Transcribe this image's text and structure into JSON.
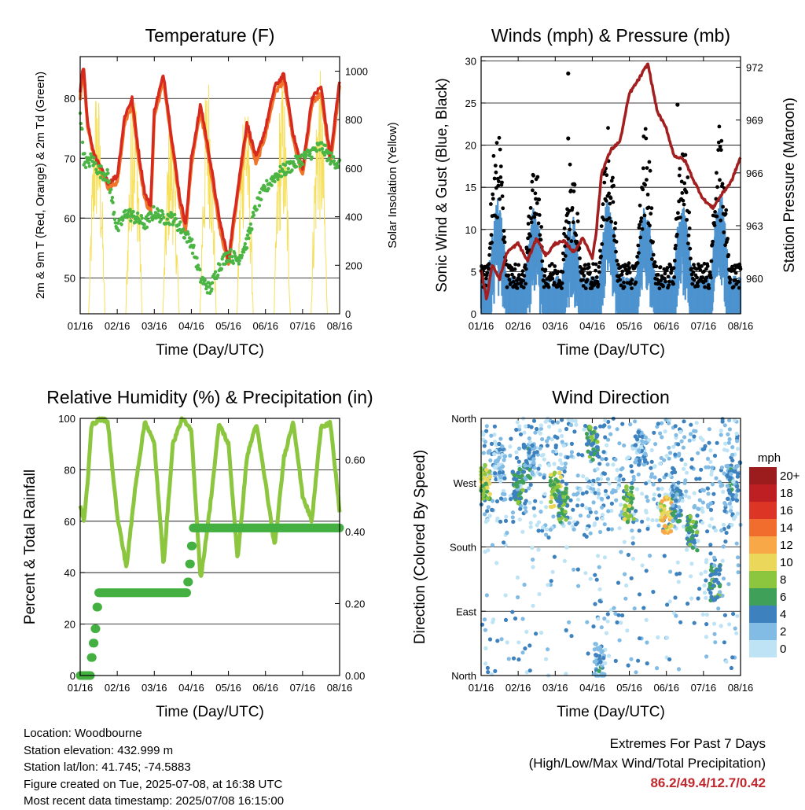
{
  "colors": {
    "temp_2m": "#d62a1e",
    "temp_9m": "#f0742a",
    "dewpoint": "#4bb543",
    "solar": "#f6df5b",
    "wind": "#4c93cf",
    "gust": "#000000",
    "pressure": "#a31f1f",
    "rh": "#8cc63f",
    "precip": "#44b042",
    "extremes_text": "#c0282d"
  },
  "chart_data": [
    {
      "type": "line",
      "title": "Temperature (F)",
      "xlabel": "Time (Day/UTC)",
      "ylabel": "2m & 9m T (Red, Orange) & 2m Td (Green)",
      "y2label": "Solar Insolation (Yellow)",
      "xticks": [
        "01/16",
        "02/16",
        "03/16",
        "04/16",
        "05/16",
        "06/16",
        "07/16",
        "08/16"
      ],
      "ylim": [
        44,
        87
      ],
      "yticks": [
        50,
        60,
        70,
        80
      ],
      "y2lim": [
        0,
        1060
      ],
      "y2ticks": [
        0,
        200,
        400,
        600,
        800,
        1000
      ],
      "grid": true,
      "series": [
        {
          "key": "temp_2m",
          "x": [
            0,
            0.05,
            0.1,
            0.2,
            0.35,
            0.5,
            0.75,
            1.0,
            1.2,
            1.4,
            1.6,
            1.75,
            1.9,
            2.0,
            2.25,
            2.5,
            2.7,
            2.85,
            3.0,
            3.25,
            3.5,
            3.75,
            4.0,
            4.25,
            4.5,
            4.75,
            5.0,
            5.25,
            5.5,
            5.75,
            6.0,
            6.25,
            6.5,
            6.75,
            7.0
          ],
          "values": [
            81,
            84,
            85,
            76,
            71,
            69,
            66,
            67,
            77,
            80,
            70,
            64,
            62,
            78,
            84,
            72,
            63,
            59,
            70,
            79,
            70,
            60,
            53,
            65,
            76,
            70,
            75,
            82,
            84,
            74,
            68,
            80,
            82,
            70,
            83
          ]
        },
        {
          "key": "temp_9m",
          "x": [
            0,
            0.05,
            0.1,
            0.2,
            0.35,
            0.5,
            0.75,
            1.0,
            1.2,
            1.4,
            1.6,
            1.75,
            1.9,
            2.0,
            2.25,
            2.5,
            2.7,
            2.85,
            3.0,
            3.25,
            3.5,
            3.75,
            4.0,
            4.25,
            4.5,
            4.75,
            5.0,
            5.25,
            5.5,
            5.75,
            6.0,
            6.25,
            6.5,
            6.75,
            7.0
          ],
          "values": [
            80,
            83,
            84,
            75,
            71,
            69,
            65,
            66,
            76,
            79,
            69,
            63,
            61,
            77,
            83,
            71,
            62,
            58,
            69,
            78,
            69,
            59,
            52,
            64,
            75,
            69,
            74,
            81,
            83,
            73,
            67,
            79,
            81,
            69,
            82
          ]
        },
        {
          "key": "dewpoint",
          "x": [
            0,
            0.1,
            0.2,
            0.3,
            0.5,
            0.75,
            1.0,
            1.25,
            1.5,
            1.75,
            2.0,
            2.25,
            2.5,
            2.75,
            3.0,
            3.25,
            3.5,
            3.75,
            4.0,
            4.25,
            4.5,
            4.75,
            5.0,
            5.25,
            5.5,
            5.75,
            6.0,
            6.25,
            6.5,
            6.75,
            7.0
          ],
          "values": [
            78,
            70,
            69,
            70,
            68,
            67,
            58,
            61,
            60,
            59,
            61,
            60,
            60,
            58,
            56,
            50,
            48,
            52,
            54,
            53,
            56,
            62,
            65,
            67,
            68,
            69,
            70,
            71,
            72,
            70,
            69
          ]
        },
        {
          "key": "solar",
          "axis": "y2",
          "peaks": [
            0.45,
            1.45,
            2.45,
            3.45,
            4.45,
            5.45,
            6.45
          ],
          "values": [
            980,
            1020,
            850,
            1030,
            1010,
            1000,
            1030
          ]
        }
      ]
    },
    {
      "type": "scatter",
      "title": "Winds (mph) & Pressure (mb)",
      "xlabel": "Time (Day/UTC)",
      "ylabel": "Sonic Wind & Gust (Blue, Black)",
      "y2label": "Station Pressure (Maroon)",
      "xticks": [
        "01/16",
        "02/16",
        "03/16",
        "04/16",
        "05/16",
        "06/16",
        "07/16",
        "08/16"
      ],
      "ylim": [
        0,
        30.5
      ],
      "yticks": [
        0,
        5,
        10,
        15,
        20,
        25,
        30
      ],
      "y2lim": [
        958.0,
        972.6
      ],
      "y2ticks": [
        960,
        963,
        966,
        969,
        972
      ],
      "grid": true,
      "series": [
        {
          "key": "pressure",
          "axis": "y2",
          "type": "line",
          "x": [
            0,
            0.15,
            0.3,
            0.5,
            0.7,
            1.0,
            1.25,
            1.5,
            1.75,
            2.0,
            2.25,
            2.5,
            2.75,
            3.0,
            3.1,
            3.25,
            3.5,
            3.75,
            4.0,
            4.25,
            4.5,
            4.75,
            5.0,
            5.2,
            5.5,
            5.75,
            6.0,
            6.25,
            6.5,
            6.75,
            7.0
          ],
          "values": [
            960.5,
            958.8,
            960.8,
            960.0,
            961.5,
            962.0,
            961.0,
            962.3,
            961.3,
            962.0,
            962.1,
            961.5,
            962.3,
            961.2,
            962.5,
            966.0,
            967.3,
            967.8,
            970.5,
            971.3,
            972.2,
            969.5,
            968.5,
            967.0,
            966.7,
            965.5,
            964.5,
            964.0,
            964.8,
            965.5,
            966.9
          ]
        },
        {
          "key": "wind",
          "type": "scatter-band",
          "daily_peak": [
            9,
            8,
            7,
            9,
            8,
            9,
            10,
            8
          ]
        },
        {
          "key": "gust",
          "type": "scatter-band",
          "daily_peak": [
            18,
            14,
            13,
            18,
            17,
            16,
            17,
            17
          ],
          "outliers": [
            {
              "x": 2.35,
              "y": 28.5
            },
            {
              "x": 2.35,
              "y": 20.8
            },
            {
              "x": 5.3,
              "y": 24.8
            }
          ]
        }
      ]
    },
    {
      "type": "line",
      "title": "Relative Humidity (%) & Precipitation (in)",
      "xlabel": "Time (Day/UTC)",
      "ylabel": "Percent & Total Rainfall",
      "xticks": [
        "01/16",
        "02/16",
        "03/16",
        "04/16",
        "05/16",
        "06/16",
        "07/16",
        "08/16"
      ],
      "ylim": [
        0,
        100
      ],
      "yticks": [
        0,
        20,
        40,
        60,
        80,
        100
      ],
      "y2lim": [
        0,
        0.7143
      ],
      "y2ticks": [
        "0.00",
        "0.20",
        "0.40",
        "0.60"
      ],
      "grid": true,
      "series": [
        {
          "key": "rh",
          "x": [
            0,
            0.1,
            0.2,
            0.3,
            0.45,
            0.6,
            0.75,
            1.0,
            1.25,
            1.5,
            1.75,
            2.0,
            2.25,
            2.5,
            2.75,
            3.0,
            3.25,
            3.5,
            3.75,
            4.0,
            4.25,
            4.5,
            4.75,
            5.0,
            5.25,
            5.5,
            5.75,
            6.0,
            6.25,
            6.5,
            6.75,
            7.0
          ],
          "values": [
            66,
            60,
            75,
            97,
            99,
            100,
            98,
            62,
            42,
            75,
            99,
            90,
            43,
            90,
            100,
            95,
            37,
            65,
            98,
            90,
            45,
            85,
            98,
            75,
            50,
            85,
            99,
            70,
            60,
            97,
            98,
            64
          ]
        },
        {
          "key": "precip",
          "axis": "y2",
          "type": "step",
          "x": [
            0,
            0.2,
            0.3,
            0.35,
            0.4,
            0.45,
            0.5,
            2.8,
            2.9,
            2.95,
            3.0,
            3.05,
            7.0
          ],
          "values": [
            0.0,
            0.0,
            0.05,
            0.09,
            0.13,
            0.19,
            0.23,
            0.23,
            0.26,
            0.31,
            0.36,
            0.41,
            0.41
          ]
        }
      ]
    },
    {
      "type": "scatter",
      "title": "Wind Direction",
      "xlabel": "Time (Day/UTC)",
      "ylabel": "Direction (Colored By Speed)",
      "xticks": [
        "01/16",
        "02/16",
        "03/16",
        "04/16",
        "05/16",
        "06/16",
        "07/16",
        "08/16"
      ],
      "yticks": [
        "North",
        "East",
        "South",
        "West",
        "North"
      ],
      "ylim": [
        0,
        360
      ],
      "legend_title": "mph",
      "legend": [
        "20+",
        "18",
        "16",
        "14",
        "12",
        "10",
        "8",
        "6",
        "4",
        "2",
        "0"
      ],
      "legend_colors": [
        "#9c1c1d",
        "#be1f23",
        "#dd3525",
        "#f06d2d",
        "#f8a847",
        "#ebd85a",
        "#8cc63f",
        "#3fa05a",
        "#3d82bf",
        "#82bce5",
        "#bde3f5"
      ],
      "legend_placement": "right",
      "grid": true,
      "clusters": [
        {
          "x": 0.1,
          "y": 270,
          "speed": 9
        },
        {
          "x": 0.5,
          "y": 300,
          "speed": 3
        },
        {
          "x": 1.0,
          "y": 265,
          "speed": 6
        },
        {
          "x": 1.3,
          "y": 300,
          "speed": 4
        },
        {
          "x": 2.0,
          "y": 260,
          "speed": 9
        },
        {
          "x": 2.2,
          "y": 240,
          "speed": 7
        },
        {
          "x": 3.0,
          "y": 325,
          "speed": 7
        },
        {
          "x": 3.2,
          "y": 20,
          "speed": 4
        },
        {
          "x": 4.0,
          "y": 240,
          "speed": 8
        },
        {
          "x": 4.3,
          "y": 320,
          "speed": 3
        },
        {
          "x": 5.0,
          "y": 225,
          "speed": 11
        },
        {
          "x": 5.25,
          "y": 240,
          "speed": 5
        },
        {
          "x": 5.7,
          "y": 200,
          "speed": 7
        },
        {
          "x": 6.3,
          "y": 130,
          "speed": 6
        },
        {
          "x": 6.8,
          "y": 270,
          "speed": 4
        }
      ]
    }
  ],
  "info": {
    "location": "Location: Woodbourne",
    "elevation": "Station elevation: 432.999 m",
    "latlon": "Station lat/lon: 41.745; -74.5883",
    "created": "Figure created on Tue, 2025-07-08, at 16:38 UTC",
    "timestamp": "Most recent data timestamp: 2025/07/08 16:15:00"
  },
  "extremes": {
    "title": "Extremes For Past 7 Days",
    "subtitle": "(High/Low/Max Wind/Total Precipitation)",
    "values": "86.2/49.4/12.7/0.42"
  }
}
